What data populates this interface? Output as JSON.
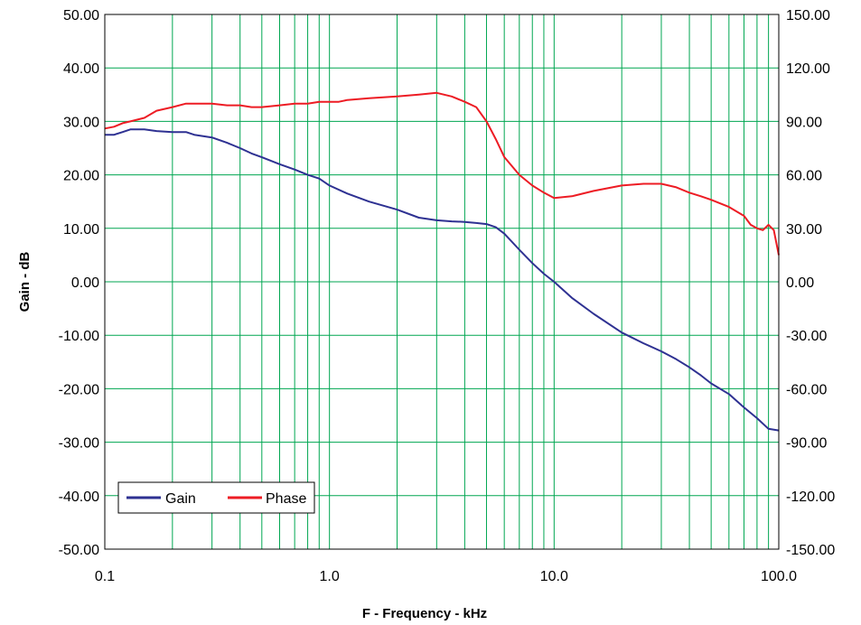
{
  "chart_data": {
    "type": "line",
    "title": "",
    "xlabel": "F - Frequency - kHz",
    "ylabel": "Gain - dB",
    "ylabel_right": "",
    "x_scale": "log",
    "xlim": [
      0.1,
      100
    ],
    "ylim": [
      -50,
      50
    ],
    "ylim_right": [
      -150,
      150
    ],
    "x_ticks": [
      "0.1",
      "1.0",
      "10.0",
      "100.0"
    ],
    "y_ticks_left": [
      "50.00",
      "40.00",
      "30.00",
      "20.00",
      "10.00",
      "0.00",
      "-10.00",
      "-20.00",
      "-30.00",
      "-40.00",
      "-50.00"
    ],
    "y_ticks_right": [
      "150.00",
      "120.00",
      "90.00",
      "60.00",
      "30.00",
      "0.00",
      "-30.00",
      "-60.00",
      "-90.00",
      "-120.00",
      "-150.00"
    ],
    "grid": true,
    "legend_position": "bottom-left",
    "colors": {
      "gain": "#2e3192",
      "phase": "#ed1c24",
      "grid": "#00a651"
    },
    "series": [
      {
        "name": "Gain",
        "axis": "left",
        "x": [
          0.1,
          0.11,
          0.12,
          0.13,
          0.15,
          0.17,
          0.2,
          0.23,
          0.25,
          0.3,
          0.35,
          0.4,
          0.45,
          0.5,
          0.6,
          0.7,
          0.8,
          0.9,
          1.0,
          1.2,
          1.5,
          2.0,
          2.5,
          3.0,
          3.5,
          4.0,
          4.5,
          5.0,
          5.5,
          6.0,
          7.0,
          8.0,
          9.0,
          10,
          12,
          15,
          20,
          25,
          30,
          35,
          40,
          45,
          50,
          60,
          70,
          80,
          90,
          100
        ],
        "y": [
          27.5,
          27.5,
          28,
          28.5,
          28.5,
          28.2,
          28,
          28,
          27.5,
          27,
          26,
          25,
          24,
          23.3,
          22,
          21,
          20,
          19.3,
          18,
          16.5,
          15,
          13.5,
          12,
          11.5,
          11.3,
          11.2,
          11,
          10.8,
          10.2,
          9,
          6,
          3.5,
          1.5,
          0,
          -3,
          -6,
          -9.5,
          -11.5,
          -13,
          -14.5,
          -16,
          -17.5,
          -19,
          -21,
          -23.5,
          -25.5,
          -27.5,
          -27.8
        ]
      },
      {
        "name": "Phase",
        "axis": "right",
        "x": [
          0.1,
          0.11,
          0.12,
          0.13,
          0.15,
          0.17,
          0.2,
          0.23,
          0.25,
          0.3,
          0.35,
          0.4,
          0.45,
          0.5,
          0.6,
          0.7,
          0.8,
          0.9,
          1.0,
          1.1,
          1.2,
          1.5,
          2.0,
          2.5,
          3.0,
          3.5,
          4.0,
          4.5,
          5.0,
          5.5,
          6.0,
          7.0,
          8.0,
          9.0,
          10,
          12,
          15,
          20,
          25,
          30,
          35,
          40,
          45,
          50,
          60,
          70,
          75,
          80,
          85,
          90,
          95,
          100
        ],
        "y": [
          86,
          87,
          89,
          90,
          92,
          96,
          98,
          100,
          100,
          100,
          99,
          99,
          98,
          98,
          99,
          100,
          100,
          101,
          101,
          101,
          102,
          103,
          104,
          105,
          106,
          104,
          101,
          98,
          90,
          80,
          70,
          60,
          54,
          50,
          47,
          48,
          51,
          54,
          55,
          55,
          53,
          50,
          48,
          46,
          42,
          37,
          32,
          30,
          29,
          32,
          29,
          15
        ]
      }
    ]
  }
}
